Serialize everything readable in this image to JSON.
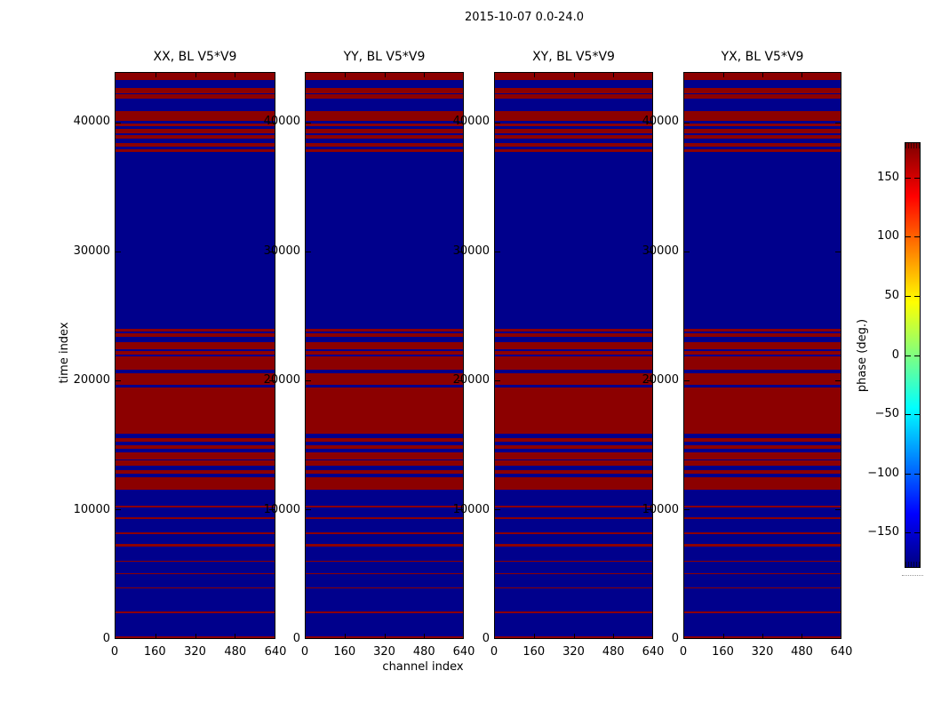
{
  "figure": {
    "title": "2015-10-07 0.0-24.0",
    "xlabel": "channel index",
    "ylabel": "time index"
  },
  "panels": [
    {
      "title": "XX, BL V5*V9"
    },
    {
      "title": "YY, BL V5*V9"
    },
    {
      "title": "XY, BL V5*V9"
    },
    {
      "title": "YX, BL V5*V9"
    }
  ],
  "axis": {
    "x_tick_labels": [
      "0",
      "160",
      "320",
      "480",
      "640"
    ],
    "y_tick_labels": [
      "0",
      "10000",
      "20000",
      "30000",
      "40000"
    ]
  },
  "colorbar": {
    "label": "phase (deg.)",
    "tick_labels": [
      "150",
      "100",
      "50",
      "0",
      "−50",
      "−100",
      "−150"
    ],
    "tick_values": [
      150,
      100,
      50,
      0,
      -50,
      -100,
      -150
    ],
    "range_deg": [
      -180,
      180
    ],
    "colormap": "jet",
    "gradient_stops": [
      [
        "#000080",
        0
      ],
      [
        "#0000ff",
        12.5
      ],
      [
        "#00ffff",
        37.5
      ],
      [
        "#ffff00",
        62.5
      ],
      [
        "#ff0000",
        87.5
      ],
      [
        "#800000",
        100
      ]
    ]
  },
  "chart_data": {
    "type": "heatmap",
    "title": "2015-10-07 0.0-24.0",
    "panel_titles": [
      "XX, BL V5*V9",
      "YY, BL V5*V9",
      "XY, BL V5*V9",
      "YX, BL V5*V9"
    ],
    "xlabel": "channel index",
    "ylabel": "time index",
    "xlim": [
      0,
      640
    ],
    "ylim": [
      0,
      43870
    ],
    "x_ticks": [
      0,
      160,
      320,
      480,
      640
    ],
    "y_ticks": [
      0,
      10000,
      20000,
      30000,
      40000
    ],
    "colorbar_label": "phase (deg.)",
    "colorbar_ticks": [
      -150,
      -100,
      -50,
      0,
      50,
      100,
      150
    ],
    "colorbar_range_deg": [
      -180,
      180
    ],
    "colormap": "jet",
    "colors": {
      "background": "#00008c",
      "band": "#8c0000"
    },
    "background_phase_deg": -178,
    "band_phase_deg": 178,
    "red_bands_time_index": [
      [
        43320,
        43870
      ],
      [
        42290,
        42700
      ],
      [
        41880,
        42220
      ],
      [
        40140,
        40870
      ],
      [
        39720,
        39950
      ],
      [
        39200,
        39490
      ],
      [
        38770,
        39040
      ],
      [
        38120,
        38390
      ],
      [
        37710,
        37940
      ],
      [
        23780,
        24010
      ],
      [
        23410,
        23640
      ],
      [
        22410,
        22980
      ],
      [
        21990,
        22310
      ],
      [
        20800,
        21900
      ],
      [
        19660,
        20570
      ],
      [
        15880,
        19470
      ],
      [
        15260,
        15530
      ],
      [
        14680,
        14980
      ],
      [
        13880,
        14390
      ],
      [
        13360,
        13770
      ],
      [
        12790,
        13010
      ],
      [
        11520,
        12510
      ],
      [
        10120,
        10260
      ],
      [
        9210,
        9350
      ],
      [
        8060,
        8200
      ],
      [
        7100,
        7290
      ],
      [
        5910,
        6020
      ],
      [
        4950,
        5060
      ],
      [
        3850,
        3960
      ],
      [
        1950,
        2060
      ],
      [
        0,
        140
      ]
    ]
  }
}
